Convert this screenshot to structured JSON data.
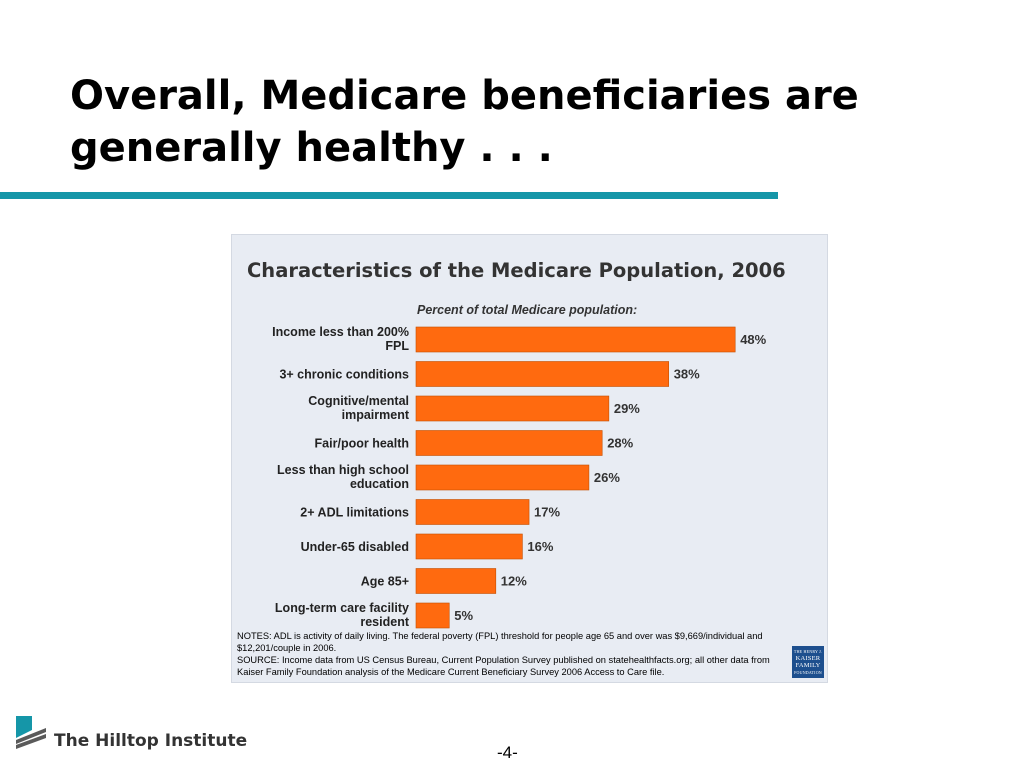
{
  "slide": {
    "title": "Overall, Medicare beneficiaries are generally healthy . . .",
    "page_number": "-4-",
    "institute_name": "The Hilltop Institute"
  },
  "chart_data": {
    "type": "bar",
    "orientation": "horizontal",
    "title": "Characteristics of the Medicare Population, 2006",
    "subtitle": "Percent of total Medicare population:",
    "categories": [
      [
        "Income less than 200%",
        "FPL"
      ],
      [
        "3+ chronic conditions"
      ],
      [
        "Cognitive/mental",
        "impairment"
      ],
      [
        "Fair/poor health"
      ],
      [
        "Less than high school",
        "education"
      ],
      [
        "2+ ADL limitations"
      ],
      [
        "Under-65 disabled"
      ],
      [
        "Age 85+"
      ],
      [
        "Long-term care facility",
        "resident"
      ]
    ],
    "values": [
      48,
      38,
      29,
      28,
      26,
      17,
      16,
      12,
      5
    ],
    "value_labels": [
      "48%",
      "38%",
      "29%",
      "28%",
      "26%",
      "17%",
      "16%",
      "12%",
      "5%"
    ],
    "unit": "%",
    "bar_color": "#ff6a0f",
    "grid": false,
    "legend": "none"
  },
  "notes": {
    "notes_text": "NOTES: ADL is activity of daily living.  The federal poverty (FPL) threshold for people age 65 and over was $9,669/individual and $12,201/couple in 2006.",
    "source_text": "SOURCE: Income data from US Census Bureau, Current Population Survey published on statehealthfacts.org; all other data from Kaiser Family Foundation analysis of the Medicare Current Beneficiary Survey 2006 Access to Care file.",
    "logo_text": [
      "THE HENRY J.",
      "KAISER",
      "FAMILY",
      "FOUNDATION"
    ]
  },
  "colors": {
    "accent_rule": "#1596a8",
    "panel_background": "#e8ecf3",
    "logo_blue": "#1d4f8e"
  }
}
